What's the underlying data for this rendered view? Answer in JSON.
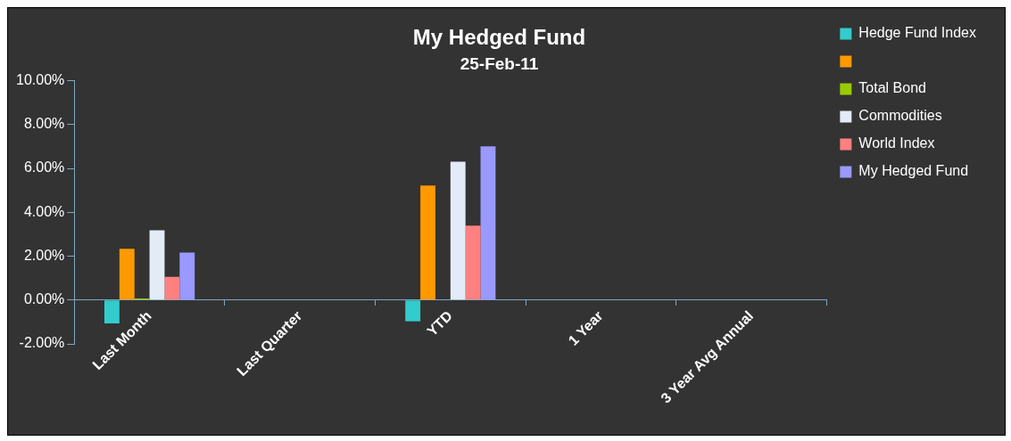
{
  "chart_data": {
    "type": "bar",
    "title": "My Hedged Fund",
    "subtitle": "25-Feb-11",
    "categories": [
      "Last Month",
      "Last Quarter",
      "YTD",
      "1 Year",
      "3 Year Avg Annual"
    ],
    "series": [
      {
        "name": "Hedge Fund Index",
        "color": "#33cccc",
        "values": [
          -1.07,
          null,
          -0.97,
          null,
          null
        ]
      },
      {
        "color": "#ff9900",
        "values": [
          2.34,
          null,
          5.22,
          null,
          null
        ]
      },
      {
        "name": "Total Bond",
        "color": "#99cc00",
        "values": [
          0.07,
          null,
          0,
          null,
          null
        ]
      },
      {
        "name": "Commodities",
        "color": "#e3ecf6",
        "values": [
          3.18,
          null,
          6.31,
          null,
          null
        ]
      },
      {
        "name": "World Index",
        "color": "#ff8080",
        "values": [
          1.06,
          null,
          3.39,
          null,
          null
        ]
      },
      {
        "name": "My Hedged Fund",
        "color": "#9999ff",
        "values": [
          2.16,
          null,
          7.01,
          null,
          null
        ]
      }
    ],
    "ylim": [
      -2,
      10
    ],
    "yticks": [
      {
        "value": -2,
        "label": "-2.00%"
      },
      {
        "value": 0,
        "label": "0.00%"
      },
      {
        "value": 2,
        "label": "2.00%"
      },
      {
        "value": 4,
        "label": "4.00%"
      },
      {
        "value": 6,
        "label": "6.00%"
      },
      {
        "value": 8,
        "label": "8.00%"
      },
      {
        "value": 10,
        "label": "10.00%"
      }
    ],
    "grid": false,
    "legend": "right"
  }
}
